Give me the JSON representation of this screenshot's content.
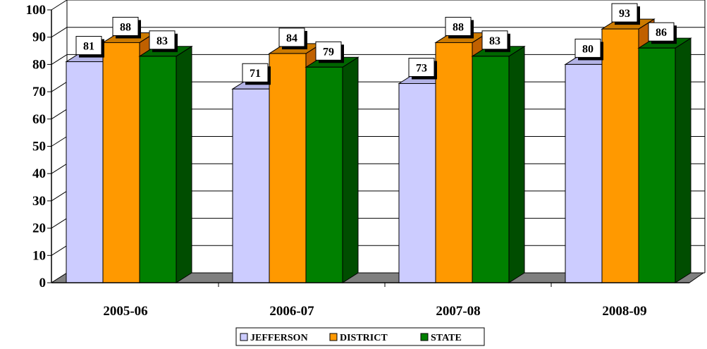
{
  "chart_data": {
    "type": "bar",
    "categories": [
      "2005-06",
      "2006-07",
      "2007-08",
      "2008-09"
    ],
    "series": [
      {
        "name": "JEFFERSON",
        "values": [
          81,
          71,
          73,
          80
        ],
        "color": "#ccccff",
        "side_color": "#9999cc",
        "top_color": "#b3b3e6"
      },
      {
        "name": "DISTRICT",
        "values": [
          88,
          84,
          88,
          93
        ],
        "color": "#ff9900",
        "side_color": "#c06000",
        "top_color": "#cc7a00"
      },
      {
        "name": "STATE",
        "values": [
          83,
          79,
          83,
          86
        ],
        "color": "#008000",
        "side_color": "#004d00",
        "top_color": "#006600"
      }
    ],
    "yticks": [
      "0",
      "10",
      "20",
      "30",
      "40",
      "50",
      "60",
      "70",
      "80",
      "90",
      "100"
    ],
    "ylim": [
      0,
      100
    ],
    "grid": true,
    "legend_position": "bottom",
    "floor_color": "#808080",
    "title": "",
    "xlabel": "",
    "ylabel": ""
  }
}
